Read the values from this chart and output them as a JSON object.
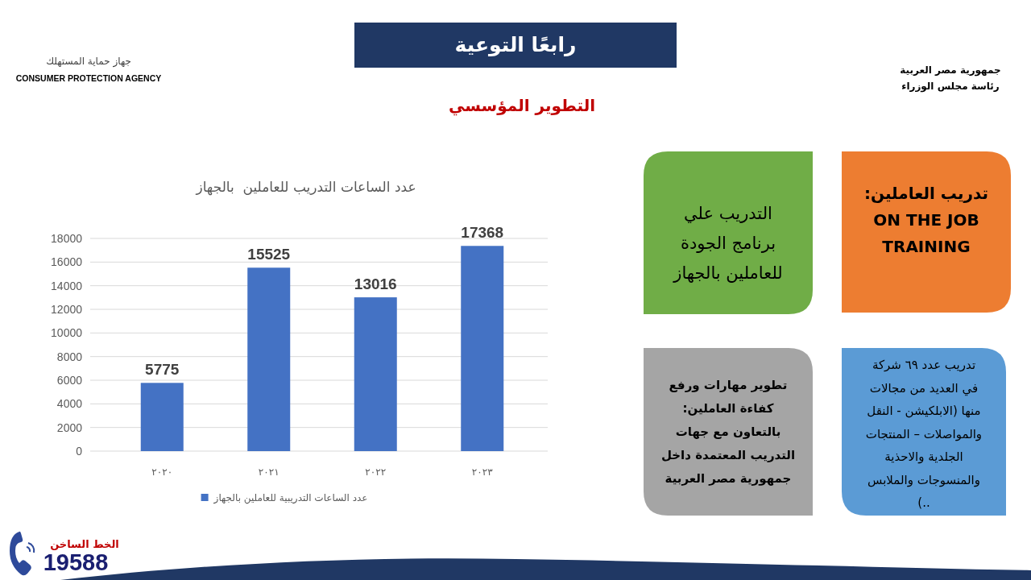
{
  "chart_data": [
    {
      "type": "bar",
      "title": "عدد الساعات التدريب للعاملين  بالجهاز",
      "categories": [
        "٢٠٢٠",
        "٢٠٢١",
        "٢٠٢٢",
        "٢٠٢٣"
      ],
      "series": [
        {
          "name": "عدد الساعات التدريبية للعاملين بالجهاز",
          "color": "#4472c4",
          "values": [
            5775,
            15525,
            13016,
            17368
          ]
        }
      ],
      "ylim": [
        0,
        18000
      ],
      "yticks": [
        0,
        2000,
        4000,
        6000,
        8000,
        10000,
        12000,
        14000,
        16000,
        18000
      ],
      "grid": "y",
      "legend": "bottom",
      "data_labels": true
    },
    {
      "type": "other",
      "title": "رابعًا التوعية",
      "subtitle": "التطوير المؤسسي",
      "annotations": [
        "جهاز حماية المستهلك",
        "CONSUMER PROTECTION AGENCY",
        "جمهورية مصر العربية",
        "رئاسة مجلس الوزراء",
        "التدريب علي\nبرنامج الجودة\nللعاملين بالجهاز",
        "تدريب العاملين:\nON THE JOB\nTRAINING",
        "تطوير مهارات ورفع\nكفاءة العاملين:\nبالتعاون مع جهات\nالتدريب المعتمدة داخل\nجمهورية مصر العربية",
        "تدريب عدد ٦٩ شركة\nفي العديد من مجالات\nمنها (الابلكيشن - النقل\nوالمواصلات – المنتجات\nالجلدية والاحذية\nوالمنسوجات والملابس\n..)",
        "الخط الساخن",
        "19588"
      ]
    }
  ]
}
